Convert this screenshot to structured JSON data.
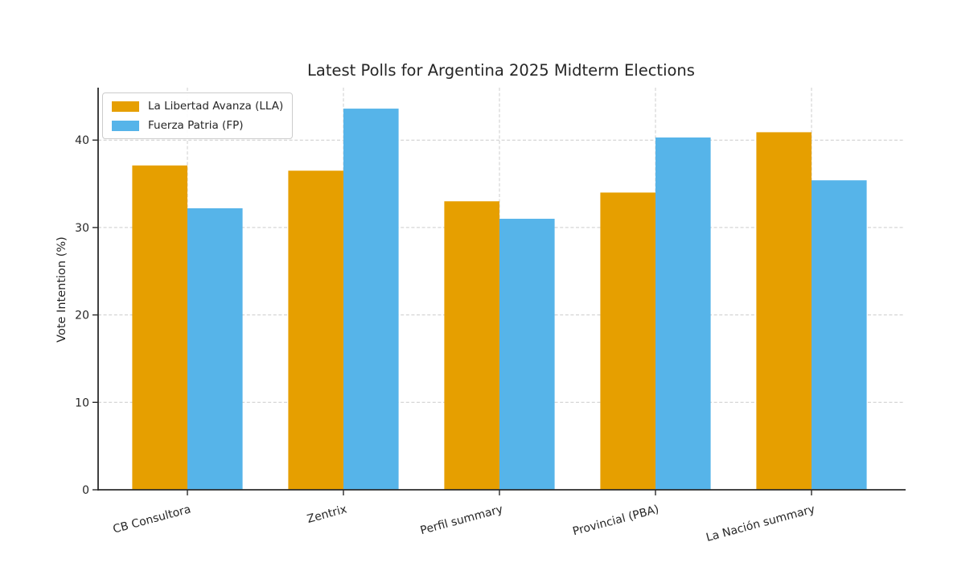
{
  "chart_data": {
    "type": "bar",
    "title": "Latest Polls for Argentina 2025 Midterm Elections",
    "xlabel": "",
    "ylabel": "Vote Intention (%)",
    "categories": [
      "CB Consultora",
      "Zentrix",
      "Perfil summary",
      "Provincial (PBA)",
      "La Nación summary"
    ],
    "series": [
      {
        "name": "La Libertad Avanza (LLA)",
        "color": "#E69F00",
        "values": [
          37.1,
          36.5,
          33.0,
          34.0,
          40.9
        ]
      },
      {
        "name": "Fuerza Patria (FP)",
        "color": "#56B4E9",
        "values": [
          32.2,
          43.6,
          31.0,
          40.3,
          35.4
        ]
      }
    ],
    "yticks": [
      0,
      10,
      20,
      30,
      40
    ],
    "ylim": [
      0,
      45.9
    ],
    "grid": "both, dashed light gray",
    "legend_position": "upper left",
    "x_tick_label_rotation_deg": 15
  },
  "colors": {
    "background": "#ffffff",
    "axis": "#2b2b2b",
    "gridline": "#cccccc",
    "text": "#262626",
    "lla_orange": "#E69F00",
    "fp_blue": "#56B4E9"
  }
}
